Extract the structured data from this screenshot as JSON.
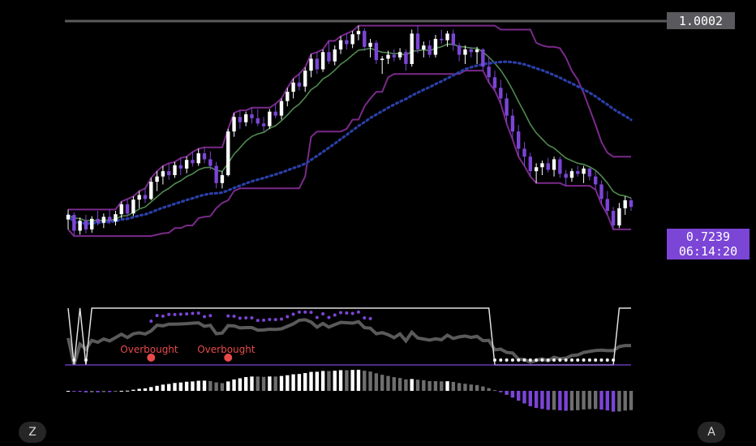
{
  "scale_labels": {
    "top_price": "1.0002"
  },
  "last_price": {
    "value": "0.7239",
    "countdown": "06:14:20"
  },
  "buttons": {
    "left": "Z",
    "right": "A"
  },
  "annotations": [
    {
      "text": "Overbought"
    },
    {
      "text": "Overbought"
    }
  ],
  "colors": {
    "background": "#000000",
    "candle_up": "#ffffff",
    "candle_down": "#7b45d6",
    "ma_fast": "#4f8a4f",
    "channel": "#7a2a8a",
    "ma_slow_dots": "#2b3fa8",
    "oscillator_line": "#5a5a5a",
    "signal_band": "#e0e0e0",
    "overbought_marker": "#e84a4a",
    "hist_positive": "#ffffff",
    "hist_negative": "#7b45d6",
    "hist_fading": "#6e6e6e",
    "last_price_tag": "#7b45d6",
    "top_price_tag": "#5a5a5e"
  },
  "chart_data": {
    "type": "candlestick",
    "price_range": [
      0.62,
      1.0
    ],
    "candles": [
      [
        0.705,
        0.72,
        0.69,
        0.712
      ],
      [
        0.712,
        0.716,
        0.68,
        0.688
      ],
      [
        0.688,
        0.708,
        0.682,
        0.703
      ],
      [
        0.703,
        0.712,
        0.684,
        0.69
      ],
      [
        0.69,
        0.71,
        0.685,
        0.706
      ],
      [
        0.706,
        0.718,
        0.696,
        0.7
      ],
      [
        0.7,
        0.714,
        0.692,
        0.709
      ],
      [
        0.709,
        0.72,
        0.698,
        0.702
      ],
      [
        0.702,
        0.718,
        0.696,
        0.713
      ],
      [
        0.713,
        0.732,
        0.707,
        0.728
      ],
      [
        0.728,
        0.736,
        0.709,
        0.714
      ],
      [
        0.714,
        0.74,
        0.71,
        0.735
      ],
      [
        0.735,
        0.748,
        0.722,
        0.742
      ],
      [
        0.742,
        0.752,
        0.73,
        0.736
      ],
      [
        0.736,
        0.768,
        0.734,
        0.762
      ],
      [
        0.762,
        0.778,
        0.748,
        0.77
      ],
      [
        0.77,
        0.786,
        0.758,
        0.778
      ],
      [
        0.778,
        0.79,
        0.765,
        0.772
      ],
      [
        0.772,
        0.792,
        0.768,
        0.787
      ],
      [
        0.787,
        0.798,
        0.772,
        0.782
      ],
      [
        0.782,
        0.8,
        0.775,
        0.795
      ],
      [
        0.795,
        0.807,
        0.785,
        0.79
      ],
      [
        0.79,
        0.812,
        0.786,
        0.805
      ],
      [
        0.805,
        0.814,
        0.79,
        0.796
      ],
      [
        0.796,
        0.808,
        0.78,
        0.786
      ],
      [
        0.786,
        0.792,
        0.752,
        0.76
      ],
      [
        0.76,
        0.778,
        0.752,
        0.772
      ],
      [
        0.772,
        0.842,
        0.77,
        0.838
      ],
      [
        0.838,
        0.866,
        0.83,
        0.86
      ],
      [
        0.86,
        0.87,
        0.842,
        0.852
      ],
      [
        0.852,
        0.868,
        0.846,
        0.864
      ],
      [
        0.864,
        0.874,
        0.85,
        0.858
      ],
      [
        0.858,
        0.872,
        0.846,
        0.85
      ],
      [
        0.85,
        0.86,
        0.838,
        0.846
      ],
      [
        0.846,
        0.872,
        0.842,
        0.868
      ],
      [
        0.868,
        0.88,
        0.858,
        0.862
      ],
      [
        0.862,
        0.888,
        0.856,
        0.884
      ],
      [
        0.884,
        0.904,
        0.876,
        0.898
      ],
      [
        0.898,
        0.918,
        0.888,
        0.912
      ],
      [
        0.912,
        0.925,
        0.9,
        0.906
      ],
      [
        0.906,
        0.935,
        0.898,
        0.93
      ],
      [
        0.93,
        0.955,
        0.92,
        0.948
      ],
      [
        0.948,
        0.958,
        0.925,
        0.932
      ],
      [
        0.932,
        0.962,
        0.928,
        0.958
      ],
      [
        0.958,
        0.975,
        0.94,
        0.944
      ],
      [
        0.944,
        0.968,
        0.938,
        0.962
      ],
      [
        0.962,
        0.982,
        0.955,
        0.976
      ],
      [
        0.976,
        0.986,
        0.962,
        0.97
      ],
      [
        0.97,
        0.99,
        0.964,
        0.985
      ],
      [
        0.985,
        0.998,
        0.976,
        0.99
      ],
      [
        0.99,
        0.994,
        0.96,
        0.966
      ],
      [
        0.966,
        0.978,
        0.95,
        0.972
      ],
      [
        0.972,
        0.976,
        0.94,
        0.946
      ],
      [
        0.946,
        0.952,
        0.925,
        0.948
      ],
      [
        0.948,
        0.96,
        0.94,
        0.954
      ],
      [
        0.954,
        0.962,
        0.944,
        0.95
      ],
      [
        0.95,
        0.964,
        0.946,
        0.958
      ],
      [
        0.958,
        0.962,
        0.93,
        0.94
      ],
      [
        0.94,
        0.992,
        0.936,
        0.986
      ],
      [
        0.986,
        0.998,
        0.956,
        0.962
      ],
      [
        0.962,
        0.974,
        0.95,
        0.968
      ],
      [
        0.968,
        0.976,
        0.95,
        0.954
      ],
      [
        0.954,
        0.984,
        0.95,
        0.978
      ],
      [
        0.978,
        0.992,
        0.97,
        0.976
      ],
      [
        0.976,
        0.99,
        0.966,
        0.986
      ],
      [
        0.986,
        0.992,
        0.96,
        0.968
      ],
      [
        0.968,
        0.972,
        0.944,
        0.954
      ],
      [
        0.954,
        0.968,
        0.94,
        0.962
      ],
      [
        0.962,
        0.966,
        0.95,
        0.958
      ],
      [
        0.958,
        0.966,
        0.94,
        0.962
      ],
      [
        0.962,
        0.964,
        0.93,
        0.936
      ],
      [
        0.936,
        0.95,
        0.912,
        0.92
      ],
      [
        0.92,
        0.93,
        0.9,
        0.904
      ],
      [
        0.904,
        0.916,
        0.88,
        0.888
      ],
      [
        0.888,
        0.896,
        0.85,
        0.862
      ],
      [
        0.862,
        0.872,
        0.826,
        0.838
      ],
      [
        0.838,
        0.848,
        0.8,
        0.812
      ],
      [
        0.812,
        0.822,
        0.786,
        0.8
      ],
      [
        0.8,
        0.806,
        0.77,
        0.778
      ],
      [
        0.778,
        0.79,
        0.76,
        0.784
      ],
      [
        0.784,
        0.794,
        0.772,
        0.79
      ],
      [
        0.79,
        0.798,
        0.776,
        0.78
      ],
      [
        0.78,
        0.8,
        0.77,
        0.796
      ],
      [
        0.796,
        0.8,
        0.768,
        0.774
      ],
      [
        0.774,
        0.78,
        0.756,
        0.768
      ],
      [
        0.768,
        0.782,
        0.762,
        0.778
      ],
      [
        0.778,
        0.786,
        0.77,
        0.774
      ],
      [
        0.774,
        0.786,
        0.76,
        0.782
      ],
      [
        0.782,
        0.784,
        0.764,
        0.77
      ],
      [
        0.77,
        0.778,
        0.75,
        0.758
      ],
      [
        0.758,
        0.764,
        0.728,
        0.736
      ],
      [
        0.736,
        0.748,
        0.712,
        0.718
      ],
      [
        0.718,
        0.724,
        0.69,
        0.696
      ],
      [
        0.696,
        0.73,
        0.692,
        0.722
      ],
      [
        0.722,
        0.74,
        0.712,
        0.734
      ],
      [
        0.734,
        0.738,
        0.718,
        0.724
      ]
    ]
  }
}
